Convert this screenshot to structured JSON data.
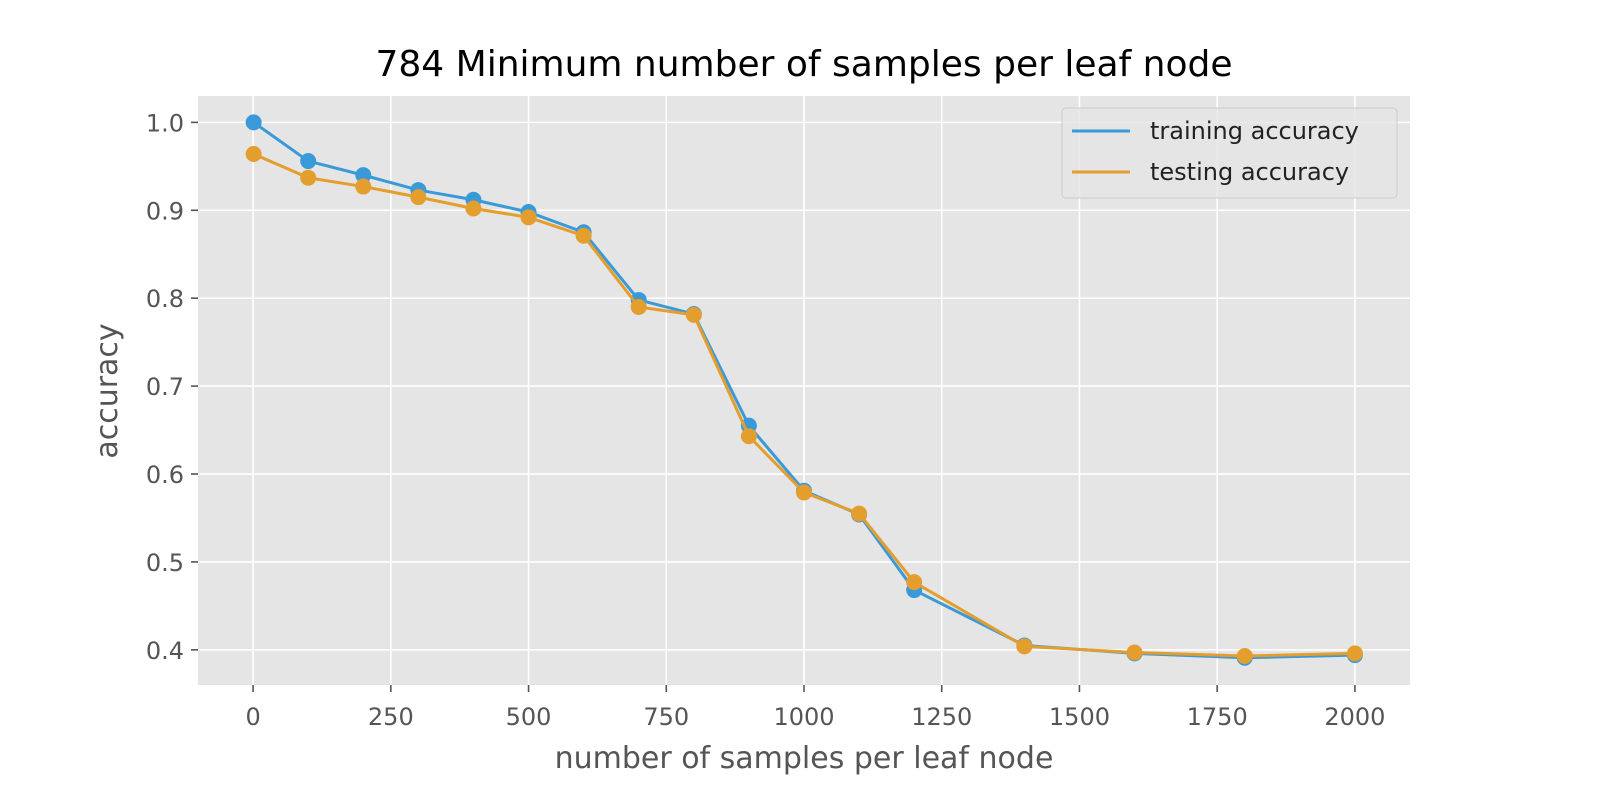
{
  "chart_data": {
    "type": "line",
    "title": "784 Minimum number of samples per leaf node",
    "xlabel": "number of samples per leaf node",
    "ylabel": "accuracy",
    "xlim": [
      -100,
      2100
    ],
    "ylim": [
      0.36,
      1.03
    ],
    "xticks": [
      0,
      250,
      500,
      750,
      1000,
      1250,
      1500,
      1750,
      2000
    ],
    "xtick_labels": [
      "0",
      "250",
      "500",
      "750",
      "1000",
      "1250",
      "1500",
      "1750",
      "2000"
    ],
    "yticks": [
      0.4,
      0.5,
      0.6,
      0.7,
      0.8,
      0.9,
      1.0
    ],
    "ytick_labels": [
      "0.4",
      "0.5",
      "0.6",
      "0.7",
      "0.8",
      "0.9",
      "1.0"
    ],
    "grid": true,
    "legend_position": "top-right",
    "x": [
      1,
      100,
      200,
      300,
      400,
      500,
      600,
      700,
      800,
      900,
      1000,
      1100,
      1200,
      1400,
      1600,
      1800,
      2000
    ],
    "series": [
      {
        "name": "training accuracy",
        "color": "#3a9ad9",
        "values": [
          1.0,
          0.956,
          0.94,
          0.923,
          0.912,
          0.898,
          0.875,
          0.798,
          0.782,
          0.655,
          0.581,
          0.554,
          0.468,
          0.405,
          0.396,
          0.391,
          0.394
        ]
      },
      {
        "name": "testing accuracy",
        "color": "#e39e2e",
        "values": [
          0.964,
          0.937,
          0.927,
          0.915,
          0.902,
          0.892,
          0.871,
          0.79,
          0.781,
          0.643,
          0.579,
          0.555,
          0.477,
          0.404,
          0.397,
          0.393,
          0.396
        ]
      }
    ]
  }
}
